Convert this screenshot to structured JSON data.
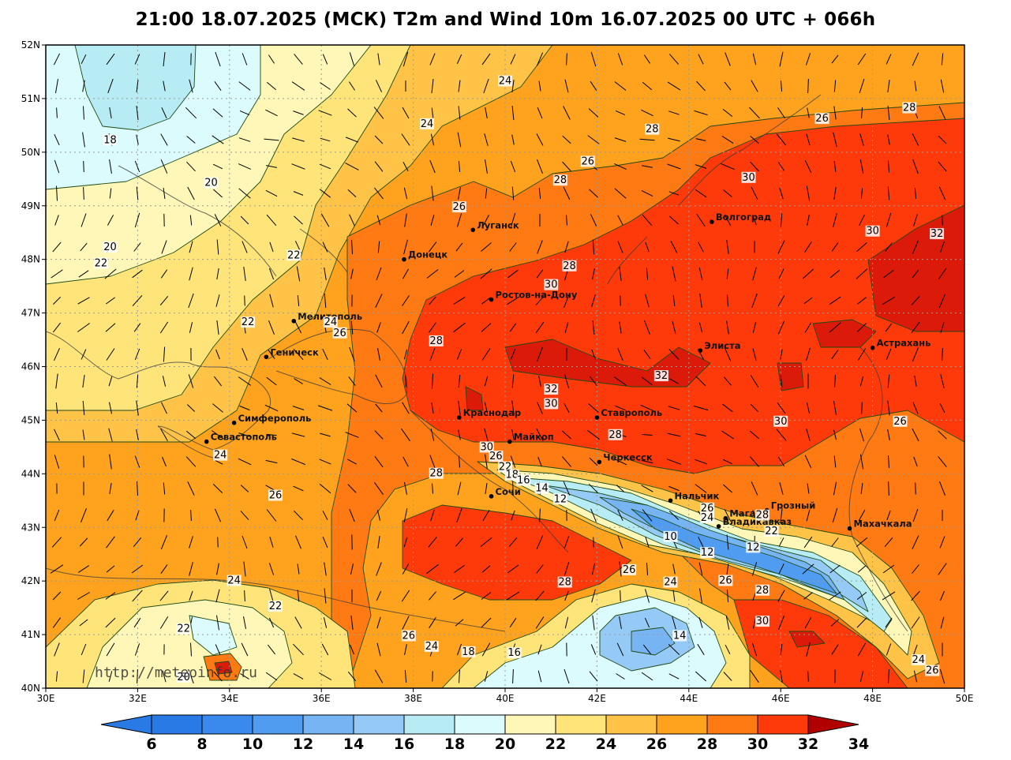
{
  "title": "21:00 18.07.2025 (МСК) T2m and Wind 10m 16.07.2025 00 UTC + 066h",
  "watermark": "http://meteoinfo.ru",
  "lat_labels": [
    "52N",
    "51N",
    "50N",
    "49N",
    "48N",
    "47N",
    "46N",
    "45N",
    "44N",
    "43N",
    "42N",
    "41N",
    "40N"
  ],
  "lon_labels": [
    "30E",
    "32E",
    "34E",
    "36E",
    "38E",
    "40E",
    "42E",
    "44E",
    "46E",
    "48E",
    "50E"
  ],
  "colors": {
    "t6": "#2a7ae6",
    "t8": "#3a8aee",
    "t10": "#4f9cf0",
    "t12": "#76b4f4",
    "t14": "#96caf6",
    "t16": "#b8ecf4",
    "t18": "#dcfbfc",
    "t20": "#fff7b8",
    "t22": "#ffe47a",
    "t24": "#ffc347",
    "t26": "#ffa31e",
    "t28": "#ff7a12",
    "t30": "#ff3a0a",
    "t32": "#dc1a0a",
    "t34": "#b20000",
    "contour": "#1e4a14",
    "coast": "#3a3a3a",
    "grid": "#9a9a9a"
  },
  "colorbar": {
    "values": [
      "6",
      "8",
      "10",
      "12",
      "14",
      "16",
      "18",
      "20",
      "22",
      "24",
      "26",
      "28",
      "30",
      "32",
      "34"
    ]
  },
  "cities": [
    {
      "name": "Луганск",
      "lon": 39.3,
      "lat": 48.55
    },
    {
      "name": "Донецк",
      "lon": 37.8,
      "lat": 48.0
    },
    {
      "name": "Волгоград",
      "lon": 44.5,
      "lat": 48.7
    },
    {
      "name": "Ростов-на-Дону",
      "lon": 39.7,
      "lat": 47.25
    },
    {
      "name": "Мелитополь",
      "lon": 35.4,
      "lat": 46.85
    },
    {
      "name": "Геническ",
      "lon": 34.8,
      "lat": 46.18
    },
    {
      "name": "Элиста",
      "lon": 44.25,
      "lat": 46.3
    },
    {
      "name": "Астрахань",
      "lon": 48.0,
      "lat": 46.35
    },
    {
      "name": "Краснодар",
      "lon": 39.0,
      "lat": 45.05
    },
    {
      "name": "Ставрополь",
      "lon": 42.0,
      "lat": 45.05
    },
    {
      "name": "Симферополь",
      "lon": 34.1,
      "lat": 44.95
    },
    {
      "name": "Севастополь",
      "lon": 33.5,
      "lat": 44.6
    },
    {
      "name": "Майкоп",
      "lon": 40.1,
      "lat": 44.6
    },
    {
      "name": "Черкесск",
      "lon": 42.05,
      "lat": 44.22
    },
    {
      "name": "Сочи",
      "lon": 39.7,
      "lat": 43.58
    },
    {
      "name": "Нальчик",
      "lon": 43.6,
      "lat": 43.5
    },
    {
      "name": "Магас",
      "lon": 44.8,
      "lat": 43.17
    },
    {
      "name": "Грозный",
      "lon": 45.7,
      "lat": 43.32
    },
    {
      "name": "Владикавказ",
      "lon": 44.65,
      "lat": 43.02
    },
    {
      "name": "Махачкала",
      "lon": 47.5,
      "lat": 42.98
    }
  ],
  "contour_labels": [
    {
      "t": "24",
      "lon": 40.0,
      "lat": 51.3
    },
    {
      "t": "24",
      "lon": 38.3,
      "lat": 50.5
    },
    {
      "t": "18",
      "lon": 31.4,
      "lat": 50.2
    },
    {
      "t": "26",
      "lon": 46.9,
      "lat": 50.6
    },
    {
      "t": "28",
      "lon": 48.8,
      "lat": 50.8
    },
    {
      "t": "28",
      "lon": 43.2,
      "lat": 50.4
    },
    {
      "t": "26",
      "lon": 41.8,
      "lat": 49.8
    },
    {
      "t": "28",
      "lon": 41.2,
      "lat": 49.45
    },
    {
      "t": "30",
      "lon": 45.3,
      "lat": 49.5
    },
    {
      "t": "20",
      "lon": 33.6,
      "lat": 49.4
    },
    {
      "t": "26",
      "lon": 39.0,
      "lat": 48.95
    },
    {
      "t": "30",
      "lon": 48.0,
      "lat": 48.5
    },
    {
      "t": "32",
      "lon": 49.4,
      "lat": 48.45
    },
    {
      "t": "20",
      "lon": 31.4,
      "lat": 48.2
    },
    {
      "t": "22",
      "lon": 31.2,
      "lat": 47.9
    },
    {
      "t": "22",
      "lon": 35.4,
      "lat": 48.05
    },
    {
      "t": "28",
      "lon": 41.4,
      "lat": 47.85
    },
    {
      "t": "30",
      "lon": 41.0,
      "lat": 47.5
    },
    {
      "t": "22",
      "lon": 34.4,
      "lat": 46.8
    },
    {
      "t": "24",
      "lon": 36.2,
      "lat": 46.8
    },
    {
      "t": "26",
      "lon": 36.4,
      "lat": 46.6
    },
    {
      "t": "28",
      "lon": 38.5,
      "lat": 46.45
    },
    {
      "t": "32",
      "lon": 43.4,
      "lat": 45.8
    },
    {
      "t": "32",
      "lon": 41.0,
      "lat": 45.55
    },
    {
      "t": "30",
      "lon": 41.0,
      "lat": 45.28
    },
    {
      "t": "30",
      "lon": 46.0,
      "lat": 44.95
    },
    {
      "t": "26",
      "lon": 48.6,
      "lat": 44.95
    },
    {
      "t": "28",
      "lon": 42.4,
      "lat": 44.7
    },
    {
      "t": "30",
      "lon": 39.6,
      "lat": 44.47
    },
    {
      "t": "24",
      "lon": 33.8,
      "lat": 44.32
    },
    {
      "t": "26",
      "lon": 39.8,
      "lat": 44.3
    },
    {
      "t": "22",
      "lon": 40.0,
      "lat": 44.1
    },
    {
      "t": "28",
      "lon": 38.5,
      "lat": 43.98
    },
    {
      "t": "18",
      "lon": 40.15,
      "lat": 43.95
    },
    {
      "t": "16",
      "lon": 40.4,
      "lat": 43.85
    },
    {
      "t": "14",
      "lon": 40.8,
      "lat": 43.7
    },
    {
      "t": "12",
      "lon": 41.2,
      "lat": 43.5
    },
    {
      "t": "26",
      "lon": 35.0,
      "lat": 43.57
    },
    {
      "t": "26",
      "lon": 44.4,
      "lat": 43.33
    },
    {
      "t": "24",
      "lon": 44.4,
      "lat": 43.15
    },
    {
      "t": "28",
      "lon": 45.6,
      "lat": 43.2
    },
    {
      "t": "22",
      "lon": 45.8,
      "lat": 42.9
    },
    {
      "t": "10",
      "lon": 43.6,
      "lat": 42.8
    },
    {
      "t": "12",
      "lon": 44.4,
      "lat": 42.5
    },
    {
      "t": "12",
      "lon": 45.4,
      "lat": 42.6
    },
    {
      "t": "26",
      "lon": 42.7,
      "lat": 42.18
    },
    {
      "t": "24",
      "lon": 34.1,
      "lat": 41.98
    },
    {
      "t": "28",
      "lon": 41.3,
      "lat": 41.95
    },
    {
      "t": "24",
      "lon": 43.6,
      "lat": 41.95
    },
    {
      "t": "26",
      "lon": 44.8,
      "lat": 41.98
    },
    {
      "t": "28",
      "lon": 45.6,
      "lat": 41.8
    },
    {
      "t": "22",
      "lon": 35.0,
      "lat": 41.5
    },
    {
      "t": "30",
      "lon": 45.6,
      "lat": 41.22
    },
    {
      "t": "22",
      "lon": 33.0,
      "lat": 41.08
    },
    {
      "t": "14",
      "lon": 43.8,
      "lat": 40.95
    },
    {
      "t": "26",
      "lon": 37.9,
      "lat": 40.95
    },
    {
      "t": "24",
      "lon": 38.4,
      "lat": 40.75
    },
    {
      "t": "18",
      "lon": 39.2,
      "lat": 40.65
    },
    {
      "t": "16",
      "lon": 40.2,
      "lat": 40.63
    },
    {
      "t": "24",
      "lon": 49.0,
      "lat": 40.5
    },
    {
      "t": "26",
      "lon": 49.3,
      "lat": 40.3
    },
    {
      "t": "20",
      "lon": 33.0,
      "lat": 40.18
    }
  ]
}
